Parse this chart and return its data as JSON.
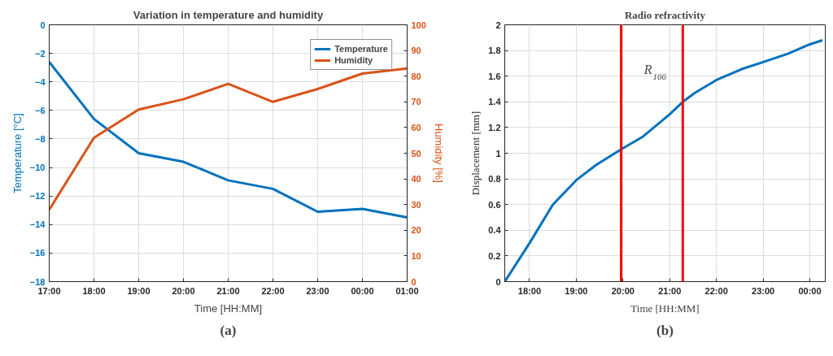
{
  "chart_data": [
    {
      "type": "line",
      "title": "Variation in temperature and humidity",
      "xlabel": "Time [HH:MM]",
      "ylabel": "Temperature [°C]",
      "y2label": "Humidity [%]",
      "annotations": [
        "(a)"
      ],
      "categories": [
        "17:00",
        "18:00",
        "19:00",
        "20:00",
        "21:00",
        "22:00",
        "23:00",
        "00:00",
        "01:00"
      ],
      "series": [
        {
          "name": "Temperature",
          "color": "#0072bd",
          "values": [
            -2.6,
            -6.6,
            -9.0,
            -9.6,
            -10.9,
            -11.5,
            -13.1,
            -12.9,
            -13.5
          ]
        },
        {
          "name": "Humidity",
          "color": "#d95319",
          "axis": "y2",
          "values": [
            28,
            56,
            67,
            71,
            77,
            70,
            75,
            81,
            83
          ]
        }
      ],
      "ylim": [
        -18,
        0
      ],
      "yticks": [
        -18,
        -16,
        -14,
        -12,
        -10,
        -8,
        -6,
        -4,
        -2,
        0
      ],
      "y2lim": [
        0,
        100
      ],
      "y2ticks": [
        0,
        10,
        20,
        30,
        40,
        50,
        60,
        70,
        80,
        90,
        100
      ],
      "grid": true,
      "legend": "top right",
      "marker": "none",
      "line_style": "solid"
    },
    {
      "type": "line",
      "title": "Radio refractivity",
      "xlabel": "Time [HH:MM]",
      "ylabel": "Displacement [mm]",
      "annotations": [
        "R$_{166}$",
        "(b)"
      ],
      "series": [
        {
          "color": "#0072bd",
          "x": [
            17.47,
            18.0,
            18.5,
            19.0,
            19.43,
            19.96,
            20.43,
            20.99,
            21.28,
            21.54,
            22.0,
            22.54,
            23.0,
            23.53,
            23.98,
            24.27
          ],
          "values": [
            0,
            0.3,
            0.6,
            0.79,
            0.91,
            1.03,
            1.13,
            1.3,
            1.4,
            1.47,
            1.57,
            1.655,
            1.71,
            1.775,
            1.845,
            1.88
          ]
        }
      ],
      "ref_lines": [
        {
          "axis": "x",
          "value": 19.96,
          "color": "#ff0000"
        },
        {
          "axis": "x",
          "value": 21.28,
          "color": "#ff0000"
        }
      ],
      "xlim": [
        17.47,
        24.33
      ],
      "xticks": [
        {
          "value": 18,
          "label": "18:00"
        },
        {
          "value": 19,
          "label": "19:00"
        },
        {
          "value": 20,
          "label": "20:00"
        },
        {
          "value": 21,
          "label": "21:00"
        },
        {
          "value": 22,
          "label": "22:00"
        },
        {
          "value": 23,
          "label": "23:00"
        },
        {
          "value": 24,
          "label": "00:00"
        }
      ],
      "ylim": [
        0,
        2
      ],
      "yticks": [
        0,
        0.2,
        0.4,
        0.6,
        0.8,
        1,
        1.2,
        1.4,
        1.6,
        1.8,
        2
      ],
      "grid": true,
      "marker": "none",
      "line_style": "solid"
    }
  ]
}
